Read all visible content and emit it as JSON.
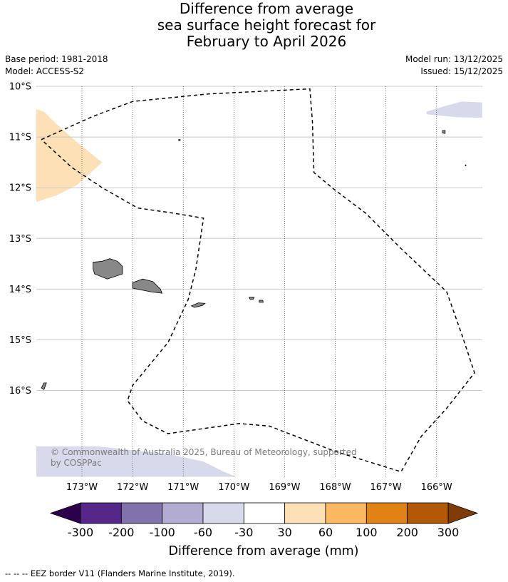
{
  "title": {
    "line1": "Difference from average",
    "line2": "sea surface height forecast for",
    "line3": "February to April 2026"
  },
  "meta": {
    "base_period": "Base period: 1981-2018",
    "model": "Model: ACCESS-S2",
    "model_run": "Model run: 13/12/2025",
    "issued": "Issued: 15/12/2025"
  },
  "map": {
    "lon_range": [
      -173.9,
      -165.1
    ],
    "lat_range": [
      -10.0,
      -17.7
    ],
    "lat_ticks": [
      {
        "value": -10,
        "label": "10°S"
      },
      {
        "value": -11,
        "label": "11°S"
      },
      {
        "value": -12,
        "label": "12°S"
      },
      {
        "value": -13,
        "label": "13°S"
      },
      {
        "value": -14,
        "label": "14°S"
      },
      {
        "value": -15,
        "label": "15°S"
      },
      {
        "value": -16,
        "label": "16°S"
      }
    ],
    "lon_ticks": [
      {
        "value": -173,
        "label": "173°W"
      },
      {
        "value": -172,
        "label": "172°W"
      },
      {
        "value": -171,
        "label": "171°W"
      },
      {
        "value": -170,
        "label": "170°W"
      },
      {
        "value": -169,
        "label": "169°W"
      },
      {
        "value": -168,
        "label": "168°W"
      },
      {
        "value": -167,
        "label": "167°W"
      },
      {
        "value": -166,
        "label": "166°W"
      }
    ],
    "land_color": "#888888",
    "copyright": {
      "line1": "© Commonwealth of Australia 2025, Bureau of Meteorology, supported",
      "line2": "by COSPPac"
    },
    "eez_borders": [
      [
        [
          -173.8,
          -11.05
        ],
        [
          -172.8,
          -10.6
        ],
        [
          -172.0,
          -10.3
        ],
        [
          -170.5,
          -10.15
        ],
        [
          -168.5,
          -10.05
        ],
        [
          -168.45,
          -10.7
        ],
        [
          -168.42,
          -11.7
        ],
        [
          -168.0,
          -12.05
        ],
        [
          -167.4,
          -12.5
        ],
        [
          -166.7,
          -13.2
        ],
        [
          -165.8,
          -14.05
        ],
        [
          -165.5,
          -14.9
        ],
        [
          -165.25,
          -15.65
        ],
        [
          -165.8,
          -16.35
        ],
        [
          -166.3,
          -16.9
        ],
        [
          -166.7,
          -17.6
        ],
        [
          -168.0,
          -17.2
        ],
        [
          -169.3,
          -16.7
        ],
        [
          -169.9,
          -16.65
        ],
        [
          -170.6,
          -16.75
        ],
        [
          -171.3,
          -16.85
        ],
        [
          -171.8,
          -16.6
        ],
        [
          -172.1,
          -16.2
        ],
        [
          -172.0,
          -15.9
        ],
        [
          -171.3,
          -15.05
        ],
        [
          -170.9,
          -14.2
        ],
        [
          -170.75,
          -13.6
        ],
        [
          -170.6,
          -12.6
        ],
        [
          -171.2,
          -12.5
        ],
        [
          -171.9,
          -12.4
        ],
        [
          -172.6,
          -12.0
        ],
        [
          -173.2,
          -11.6
        ],
        [
          -173.8,
          -11.05
        ]
      ]
    ],
    "anomaly_regions": [
      {
        "category": "30 to 60",
        "color": "#fee0b6",
        "polygon": [
          [
            -173.9,
            -10.45
          ],
          [
            -173.75,
            -10.5
          ],
          [
            -173.5,
            -10.75
          ],
          [
            -173.1,
            -11.1
          ],
          [
            -172.6,
            -11.5
          ],
          [
            -173.1,
            -11.95
          ],
          [
            -173.5,
            -12.15
          ],
          [
            -173.9,
            -12.28
          ]
        ]
      },
      {
        "category": "-30 to -60",
        "color": "#d8daeb",
        "polygon": [
          [
            -166.2,
            -10.5
          ],
          [
            -165.8,
            -10.38
          ],
          [
            -165.5,
            -10.3
          ],
          [
            -165.1,
            -10.32
          ],
          [
            -165.1,
            -10.62
          ],
          [
            -165.6,
            -10.61
          ],
          [
            -166.2,
            -10.55
          ]
        ]
      },
      {
        "category": "-30 to -60",
        "color": "#d8daeb",
        "polygon": [
          [
            -173.9,
            -17.1
          ],
          [
            -172.7,
            -17.1
          ],
          [
            -171.3,
            -17.25
          ],
          [
            -170.6,
            -17.4
          ],
          [
            -170.2,
            -17.6
          ],
          [
            -169.95,
            -17.7
          ],
          [
            -173.9,
            -17.7
          ]
        ]
      }
    ],
    "islands": [
      [
        [
          -172.78,
          -13.47
        ],
        [
          -172.6,
          -13.45
        ],
        [
          -172.45,
          -13.4
        ],
        [
          -172.3,
          -13.45
        ],
        [
          -172.2,
          -13.55
        ],
        [
          -172.2,
          -13.7
        ],
        [
          -172.5,
          -13.8
        ],
        [
          -172.75,
          -13.7
        ],
        [
          -172.78,
          -13.6
        ]
      ],
      [
        [
          -172.0,
          -13.87
        ],
        [
          -171.8,
          -13.8
        ],
        [
          -171.6,
          -13.85
        ],
        [
          -171.45,
          -14.0
        ],
        [
          -171.42,
          -14.08
        ],
        [
          -171.65,
          -14.05
        ],
        [
          -172.0,
          -13.98
        ]
      ],
      [
        [
          -170.84,
          -14.33
        ],
        [
          -170.7,
          -14.27
        ],
        [
          -170.57,
          -14.28
        ],
        [
          -170.62,
          -14.32
        ],
        [
          -170.78,
          -14.36
        ]
      ],
      [
        [
          -169.7,
          -14.16
        ],
        [
          -169.6,
          -14.16
        ],
        [
          -169.62,
          -14.2
        ],
        [
          -169.68,
          -14.2
        ]
      ],
      [
        [
          -169.5,
          -14.22
        ],
        [
          -169.43,
          -14.22
        ],
        [
          -169.42,
          -14.26
        ],
        [
          -169.5,
          -14.26
        ]
      ],
      [
        [
          -173.75,
          -15.85
        ],
        [
          -173.7,
          -15.85
        ],
        [
          -173.75,
          -15.98
        ],
        [
          -173.8,
          -15.95
        ]
      ],
      [
        [
          -171.09,
          -11.05
        ],
        [
          -171.06,
          -11.05
        ],
        [
          -171.06,
          -11.07
        ],
        [
          -171.09,
          -11.07
        ]
      ],
      [
        [
          -165.88,
          -10.87
        ],
        [
          -165.83,
          -10.87
        ],
        [
          -165.83,
          -10.93
        ],
        [
          -165.88,
          -10.92
        ]
      ],
      [
        [
          -165.43,
          -11.55
        ],
        [
          -165.42,
          -11.55
        ],
        [
          -165.42,
          -11.57
        ],
        [
          -165.43,
          -11.57
        ]
      ]
    ]
  },
  "colorbar": {
    "label": "Difference from average (mm)",
    "tick_labels": [
      "-300",
      "-200",
      "-100",
      "-60",
      "-30",
      "30",
      "60",
      "100",
      "200",
      "300"
    ],
    "under_color": "#2d004b",
    "over_color": "#7f3b08",
    "colors": [
      "#542788",
      "#8073ac",
      "#b2abd2",
      "#d8daeb",
      "#ffffff",
      "#fee0b6",
      "#fdb863",
      "#e08214",
      "#b35806"
    ]
  },
  "footer": "--  --  -- EEZ border V11 (Flanders Marine Institute, 2019)."
}
